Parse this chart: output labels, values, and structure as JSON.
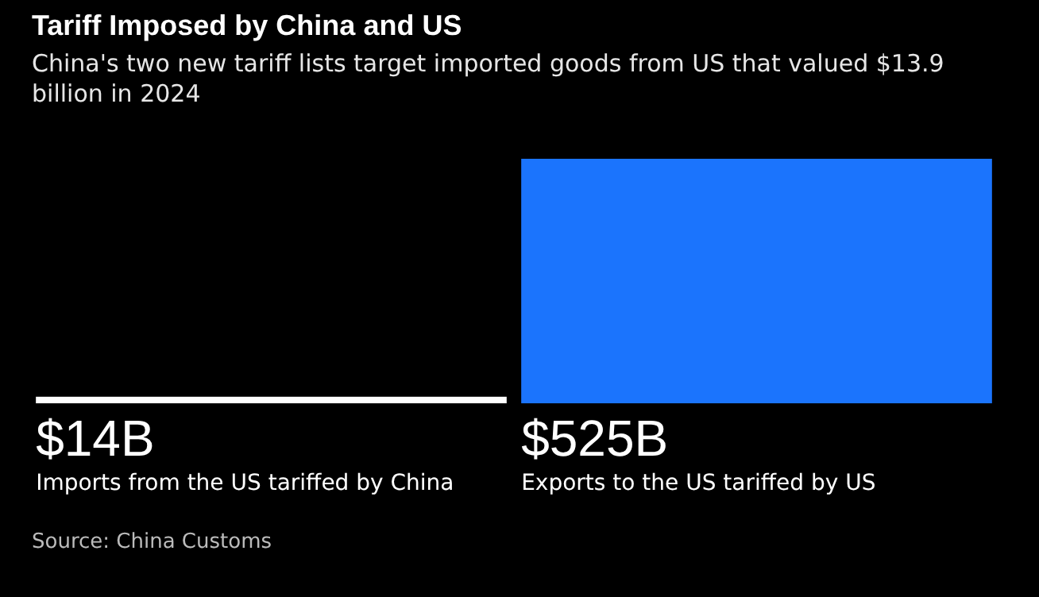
{
  "chart_data": {
    "type": "bar",
    "title": "Tariff Imposed by China and US",
    "subtitle": "China's two new tariff lists target imported goods from US that valued $13.9 billion in 2024",
    "categories": [
      "Imports from the US tariffed by China",
      "Exports to the US tariffed by US"
    ],
    "values": [
      14,
      525
    ],
    "value_labels": [
      "$14B",
      "$525B"
    ],
    "colors": [
      "#ffffff",
      "#1b74fd"
    ],
    "annotations": [
      "Source: China Customs"
    ]
  }
}
